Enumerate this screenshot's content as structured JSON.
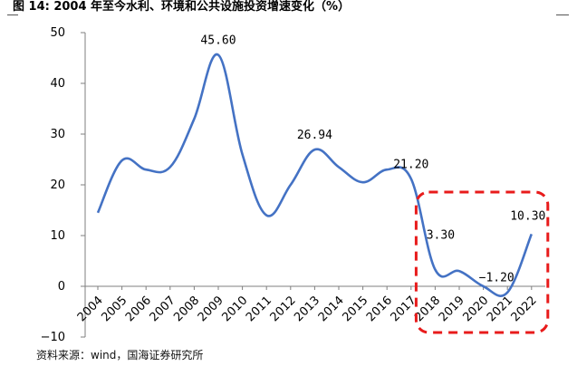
{
  "header": {
    "title": "图 14:  2004 年至今水利、环境和公共设施投资增速变化（%）"
  },
  "footer": {
    "source": "资料来源：wind，国海证券研究所"
  },
  "chart_data": {
    "type": "line",
    "title": "图 14:  2004 年至今水利、环境和公共设施投资增速变化（%）",
    "xlabel": "",
    "ylabel": "",
    "x": [
      2004,
      2005,
      2006,
      2007,
      2008,
      2009,
      2010,
      2011,
      2012,
      2013,
      2014,
      2015,
      2016,
      2017,
      2018,
      2019,
      2020,
      2021,
      2022
    ],
    "x_tick_labels": [
      "2004",
      "2005",
      "2006",
      "2007",
      "2008",
      "2009",
      "2010",
      "2011",
      "2012",
      "2013",
      "2014",
      "2015",
      "2016",
      "2017",
      "2018",
      "2019",
      "2020",
      "2021",
      "2022"
    ],
    "ylim": [
      -10,
      50
    ],
    "y_ticks": [
      -10,
      0,
      10,
      20,
      30,
      40,
      50
    ],
    "y_tick_labels": [
      "−10",
      "0",
      "10",
      "20",
      "30",
      "40",
      "50"
    ],
    "series": [
      {
        "color": "#4472C4",
        "values": [
          14.5,
          24.8,
          23.0,
          23.5,
          33.0,
          45.6,
          26.0,
          14.0,
          20.0,
          26.94,
          23.5,
          20.5,
          23.0,
          21.2,
          3.3,
          3.0,
          0.0,
          -1.2,
          10.3
        ]
      }
    ],
    "data_labels": [
      {
        "year": 2009,
        "text": "45.60"
      },
      {
        "year": 2013,
        "text": "26.94"
      },
      {
        "year": 2017,
        "text": "21.20"
      },
      {
        "year": 2018,
        "text": "3.30"
      },
      {
        "year": 2021,
        "text": "−1.20"
      },
      {
        "year": 2022,
        "text": "10.30"
      }
    ],
    "highlight": {
      "from_year": 2018,
      "to_year": 2022,
      "color": "#E81B1B",
      "style": "dashed"
    },
    "grid": false,
    "legend": "none"
  }
}
